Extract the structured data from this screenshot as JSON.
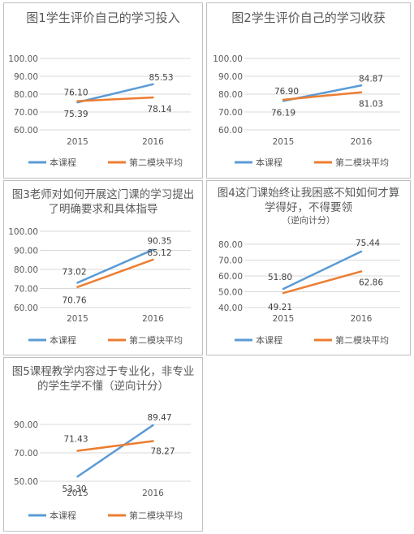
{
  "legend_labels": [
    "本课程",
    "第二模块平均"
  ],
  "colors": {
    "course": "#5b9bd5",
    "module_avg": "#ed7d31"
  },
  "chart_data": [
    {
      "type": "line",
      "title": "图1学生评价自己的学习投入",
      "subtitle": "",
      "categories": [
        "2015",
        "2016"
      ],
      "y_tick_labels": [
        "100.00",
        "90.00",
        "80.00",
        "70.00",
        "60.00"
      ],
      "ylim": [
        60,
        100
      ],
      "grid": true,
      "legend": "bottom",
      "series": [
        {
          "name": "本课程",
          "values": [
            75.39,
            85.53
          ],
          "labels": [
            "75.39",
            "85.53"
          ]
        },
        {
          "name": "第二模块平均",
          "values": [
            76.1,
            78.14
          ],
          "labels": [
            "76.10",
            "78.14"
          ]
        }
      ]
    },
    {
      "type": "line",
      "title": "图2学生评价自己的学习收获",
      "subtitle": "",
      "categories": [
        "2015",
        "2016"
      ],
      "y_tick_labels": [
        "100.00",
        "90.00",
        "80.00",
        "70.00",
        "60.00"
      ],
      "ylim": [
        60,
        100
      ],
      "grid": true,
      "legend": "bottom",
      "series": [
        {
          "name": "本课程",
          "values": [
            76.19,
            84.87
          ],
          "labels": [
            "76.19",
            "84.87"
          ]
        },
        {
          "name": "第二模块平均",
          "values": [
            76.9,
            81.03
          ],
          "labels": [
            "76.90",
            "81.03"
          ]
        }
      ]
    },
    {
      "type": "line",
      "title": "图3老师对如何开展这门课的学习提出了明确要求和具体指导",
      "subtitle": "",
      "categories": [
        "2015",
        "2016"
      ],
      "y_tick_labels": [
        "100.00",
        "90.00",
        "80.00",
        "70.00",
        "60.00"
      ],
      "ylim": [
        60,
        100
      ],
      "grid": true,
      "legend": "bottom",
      "series": [
        {
          "name": "本课程",
          "values": [
            73.02,
            90.35
          ],
          "labels": [
            "73.02",
            "90.35"
          ]
        },
        {
          "name": "第二模块平均",
          "values": [
            70.76,
            85.12
          ],
          "labels": [
            "70.76",
            "85.12"
          ]
        }
      ]
    },
    {
      "type": "line",
      "title": "图4这门课始终让我困惑不知如何才算学得好，不得要领",
      "subtitle": "（逆向计分）",
      "categories": [
        "2015",
        "2016"
      ],
      "y_tick_labels": [
        "80.00",
        "70.00",
        "60.00",
        "50.00",
        "40.00"
      ],
      "ylim": [
        40,
        80
      ],
      "grid": true,
      "legend": "bottom",
      "series": [
        {
          "name": "本课程",
          "values": [
            51.8,
            75.44
          ],
          "labels": [
            "51.80",
            "75.44"
          ]
        },
        {
          "name": "第二模块平均",
          "values": [
            49.21,
            62.86
          ],
          "labels": [
            "49.21",
            "62.86"
          ]
        }
      ]
    },
    {
      "type": "line",
      "title": "图5课程教学内容过于专业化，非专业的学生学不懂（逆向计分）",
      "subtitle": "",
      "categories": [
        "2015",
        "2016"
      ],
      "y_tick_labels": [
        "90.00",
        "70.00",
        "50.00"
      ],
      "ylim": [
        50,
        90
      ],
      "grid": true,
      "legend": "bottom",
      "series": [
        {
          "name": "本课程",
          "values": [
            53.3,
            89.47
          ],
          "labels": [
            "53.30",
            "89.47"
          ]
        },
        {
          "name": "第二模块平均",
          "values": [
            71.43,
            78.27
          ],
          "labels": [
            "71.43",
            "78.27"
          ]
        }
      ]
    }
  ]
}
